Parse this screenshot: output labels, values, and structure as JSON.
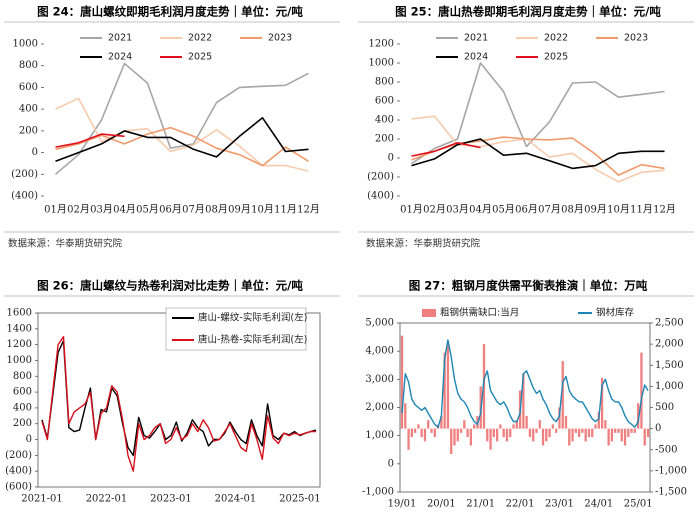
{
  "chart_data": [
    {
      "type": "line",
      "title": "图 24：唐山螺纹即期毛利润月度走势｜单位：元/吨",
      "source": "数据来源：华泰期货研究院",
      "categories": [
        "01月",
        "02月",
        "03月",
        "04月",
        "05月",
        "06月",
        "07月",
        "08月",
        "09月",
        "10月",
        "11月",
        "12月"
      ],
      "ylim": [
        -400,
        1000
      ],
      "yticks": [
        {
          "value": -400,
          "label": "(400)"
        },
        {
          "value": -200,
          "label": "(200)"
        },
        0,
        200,
        400,
        600,
        800,
        1000
      ],
      "series": [
        {
          "name": "2021",
          "color": "#a6a6a6",
          "values": [
            -200,
            -20,
            300,
            820,
            640,
            40,
            80,
            460,
            600,
            610,
            620,
            730
          ]
        },
        {
          "name": "2022",
          "color": "#f8cbad",
          "values": [
            400,
            500,
            100,
            200,
            220,
            10,
            70,
            210,
            60,
            -120,
            -120,
            -170
          ]
        },
        {
          "name": "2023",
          "color": "#f19a6b",
          "values": [
            30,
            80,
            160,
            80,
            170,
            230,
            150,
            40,
            -20,
            -120,
            50,
            -80
          ]
        },
        {
          "name": "2024",
          "color": "#000000",
          "values": [
            -80,
            0,
            80,
            200,
            140,
            140,
            30,
            -40,
            150,
            320,
            10,
            30
          ]
        },
        {
          "name": "2025",
          "color": "#e0101e",
          "values": [
            50,
            90,
            170,
            150,
            null,
            null,
            null,
            null,
            null,
            null,
            null,
            null
          ]
        }
      ]
    },
    {
      "type": "line",
      "title": "图 25：唐山热卷即期毛利润月度走势｜单位：元/吨",
      "source": "数据来源：华泰期货研究院",
      "categories": [
        "01月",
        "02月",
        "03月",
        "04月",
        "05月",
        "06月",
        "07月",
        "08月",
        "09月",
        "10月",
        "11月",
        "12月"
      ],
      "ylim": [
        -400,
        1200
      ],
      "yticks": [
        {
          "value": -400,
          "label": "(400)"
        },
        {
          "value": -200,
          "label": "(200)"
        },
        0,
        200,
        400,
        600,
        800,
        1000,
        1200
      ],
      "series": [
        {
          "name": "2021",
          "color": "#a6a6a6",
          "values": [
            -60,
            100,
            200,
            1000,
            700,
            120,
            380,
            790,
            800,
            640,
            670,
            700
          ]
        },
        {
          "name": "2022",
          "color": "#f8cbad",
          "values": [
            410,
            440,
            140,
            120,
            170,
            200,
            10,
            50,
            -120,
            -250,
            -150,
            -130
          ]
        },
        {
          "name": "2023",
          "color": "#f19a6b",
          "values": [
            -20,
            70,
            150,
            180,
            220,
            200,
            190,
            210,
            40,
            -180,
            -70,
            -110
          ]
        },
        {
          "name": "2024",
          "color": "#000000",
          "values": [
            -80,
            -10,
            140,
            200,
            30,
            50,
            -30,
            -110,
            -80,
            50,
            70,
            70
          ]
        },
        {
          "name": "2025",
          "color": "#e0101e",
          "values": [
            20,
            70,
            160,
            110,
            null,
            null,
            null,
            null,
            null,
            null,
            null,
            null
          ]
        }
      ]
    },
    {
      "type": "line",
      "title": "图 26：唐山螺纹与热卷利润对比走势｜单位：元/吨",
      "categories": [
        "2021-01",
        null,
        null,
        null,
        null,
        null,
        null,
        null,
        null,
        null,
        null,
        null,
        "2022-01",
        null,
        null,
        null,
        null,
        null,
        null,
        null,
        null,
        null,
        null,
        null,
        "2023-01",
        null,
        null,
        null,
        null,
        null,
        null,
        null,
        null,
        null,
        null,
        null,
        "2024-01",
        null,
        null,
        null,
        null,
        null,
        null,
        null,
        null,
        null,
        null,
        null,
        "2025-01",
        null,
        null,
        null
      ],
      "ylim": [
        -600,
        1600
      ],
      "yticks": [
        {
          "value": -600,
          "label": "(600)"
        },
        {
          "value": -400,
          "label": "(400)"
        },
        {
          "value": -200,
          "label": "(200)"
        },
        0,
        200,
        400,
        600,
        800,
        1000,
        1200,
        1400,
        1600
      ],
      "series": [
        {
          "name": "唐山-螺纹-实际毛利润(左)",
          "color": "#000000",
          "values": [
            250,
            20,
            550,
            1100,
            1250,
            150,
            100,
            120,
            400,
            650,
            0,
            380,
            350,
            650,
            550,
            200,
            -100,
            -200,
            280,
            50,
            20,
            100,
            200,
            0,
            50,
            220,
            -20,
            80,
            250,
            150,
            100,
            -80,
            0,
            0,
            80,
            220,
            100,
            0,
            -50,
            250,
            50,
            -80,
            450,
            50,
            0,
            80,
            60,
            100,
            50,
            80,
            100,
            120
          ]
        },
        {
          "name": "唐山-热卷-实际毛利润(左)",
          "color": "#d9101c",
          "values": [
            230,
            0,
            600,
            1200,
            1300,
            200,
            350,
            400,
            450,
            600,
            0,
            330,
            400,
            680,
            600,
            250,
            -200,
            -400,
            200,
            0,
            50,
            150,
            200,
            -50,
            0,
            150,
            0,
            50,
            200,
            100,
            250,
            150,
            -20,
            0,
            100,
            200,
            50,
            -100,
            -150,
            200,
            0,
            -250,
            300,
            20,
            -50,
            80,
            50,
            80,
            60,
            80,
            100,
            100
          ]
        }
      ]
    },
    {
      "type": "combo",
      "title": "图 27：粗钢月度供需平衡表推演｜单位：万吨",
      "categories": [
        "19/01",
        null,
        null,
        null,
        null,
        null,
        null,
        null,
        null,
        null,
        null,
        null,
        "20/01",
        null,
        null,
        null,
        null,
        null,
        null,
        null,
        null,
        null,
        null,
        null,
        "21/01",
        null,
        null,
        null,
        null,
        null,
        null,
        null,
        null,
        null,
        null,
        null,
        "22/01",
        null,
        null,
        null,
        null,
        null,
        null,
        null,
        null,
        null,
        null,
        null,
        "23/01",
        null,
        null,
        null,
        null,
        null,
        null,
        null,
        null,
        null,
        null,
        null,
        "24/01",
        null,
        null,
        null,
        null,
        null,
        null,
        null,
        null,
        null,
        null,
        null,
        "25/01",
        null,
        null,
        null
      ],
      "ylim": [
        -1000,
        5000
      ],
      "yticks": [
        {
          "value": -1000,
          "label": "-1,000"
        },
        0,
        {
          "value": 1000,
          "label": "1,000"
        },
        {
          "value": 2000,
          "label": "2,000"
        },
        {
          "value": 3000,
          "label": "3,000"
        },
        {
          "value": 4000,
          "label": "4,000"
        },
        {
          "value": 5000,
          "label": "5,000"
        }
      ],
      "y2lim": [
        -1500,
        2500
      ],
      "y2ticks": [
        {
          "value": -1500,
          "label": "-1,500"
        },
        {
          "value": -1000,
          "label": "-1,000"
        },
        -500,
        0,
        500,
        {
          "value": 1000,
          "label": "1,000"
        },
        {
          "value": 1500,
          "label": "1,500"
        },
        {
          "value": 2000,
          "label": "2,000"
        },
        {
          "value": 2500,
          "label": "2,500"
        }
      ],
      "series": [
        {
          "name": "粗钢供需缺口:当月",
          "kind": "bar",
          "axis": "y2",
          "color": "#f07f7f",
          "values": [
            2200,
            600,
            -500,
            -200,
            -100,
            100,
            -200,
            -300,
            200,
            -100,
            -200,
            100,
            300,
            1800,
            2000,
            -600,
            -400,
            -300,
            -100,
            200,
            -200,
            -400,
            100,
            300,
            1000,
            2000,
            -300,
            -500,
            -200,
            -300,
            100,
            -200,
            -300,
            -200,
            100,
            200,
            900,
            1300,
            300,
            -200,
            -300,
            -100,
            200,
            -400,
            -300,
            -200,
            100,
            -100,
            500,
            1600,
            300,
            -400,
            -300,
            -100,
            -200,
            -100,
            -300,
            -200,
            -200,
            100,
            400,
            1200,
            200,
            -400,
            -300,
            -100,
            -100,
            -300,
            -400,
            -200,
            -100,
            -100,
            600,
            1800,
            -400,
            -200
          ]
        },
        {
          "name": "钢材库存",
          "kind": "line",
          "axis": "y",
          "color": "#1d86b4",
          "values": [
            1800,
            3200,
            2900,
            2300,
            2100,
            2000,
            1900,
            2000,
            1800,
            1600,
            1400,
            1300,
            1700,
            3700,
            4400,
            3800,
            3000,
            2500,
            2300,
            2200,
            2000,
            1700,
            1500,
            1400,
            1800,
            3000,
            3300,
            2600,
            2400,
            2200,
            2100,
            2200,
            2000,
            1700,
            1500,
            1500,
            1800,
            3200,
            3300,
            3000,
            2700,
            2500,
            2600,
            2300,
            2100,
            1800,
            1600,
            1500,
            1700,
            2900,
            3100,
            2600,
            2400,
            2300,
            2200,
            2200,
            2000,
            1800,
            1600,
            1500,
            1600,
            2800,
            3000,
            2600,
            2300,
            2200,
            2200,
            2000,
            1700,
            1500,
            1400,
            1300,
            1500,
            2300,
            2800,
            2600
          ]
        }
      ]
    }
  ]
}
